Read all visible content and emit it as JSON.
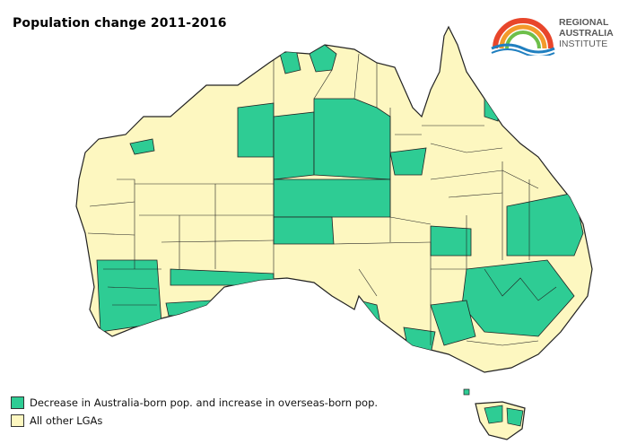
{
  "title": "Population change 2011-2016",
  "logo": {
    "line1": "REGIONAL",
    "line2": "AUSTRALIA",
    "line3": "INSTITUTE"
  },
  "colors": {
    "decrease": "#2ecc94",
    "other": "#fdf7c0",
    "border": "#222222"
  },
  "legend": [
    {
      "label": "Decrease in Australia-born pop. and increase in overseas-born pop.",
      "color": "#2ecc94"
    },
    {
      "label": "All other LGAs",
      "color": "#fdf7c0"
    }
  ]
}
